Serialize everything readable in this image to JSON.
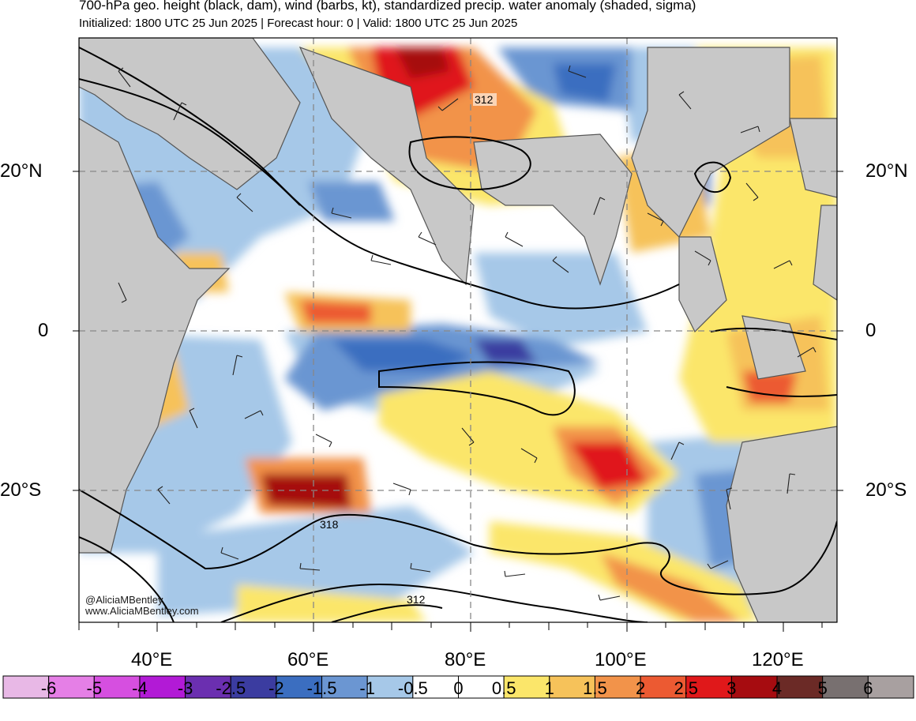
{
  "header": {
    "title": "700-hPa geo. height (black, dam), wind (barbs, kt), standardized precip. water anomaly (shaded, sigma)",
    "subtitle": "Initialized: 1800 UTC 25 Jun 2025 | Forecast hour: 0 | Valid: 1800 UTC 25 Jun 2025"
  },
  "axes": {
    "lat_labels": [
      "20°N",
      "0",
      "20°S"
    ],
    "lon_labels": [
      "40°E",
      "60°E",
      "80°E",
      "100°E",
      "120°E"
    ]
  },
  "contour_labels": [
    "312",
    "318",
    "312"
  ],
  "credit": [
    "@AliciaMBentley",
    "www.AliciaMBentley.com"
  ],
  "colorbar": {
    "labels": [
      "-6",
      "-5",
      "-4",
      "-3",
      "-2.5",
      "-2",
      "-1.5",
      "-1",
      "-0.5",
      "0",
      "0.5",
      "1",
      "1.5",
      "2",
      "2.5",
      "3",
      "4",
      "5",
      "6"
    ],
    "colors": [
      "#e8b8e6",
      "#e57fe6",
      "#d64fe0",
      "#b21ad6",
      "#6b2fb0",
      "#3b3ca0",
      "#3b6ec0",
      "#6b96d2",
      "#a6c8e8",
      "#ffffff",
      "#ffffff",
      "#fbe66a",
      "#f6c25a",
      "#f2934a",
      "#ec5a32",
      "#e0181a",
      "#a60c10",
      "#6b2a26",
      "#787070",
      "#a8a0a0"
    ]
  },
  "map_colors": {
    "land": "#c8c8c8",
    "coast": "#555555",
    "grid": "#888888"
  }
}
